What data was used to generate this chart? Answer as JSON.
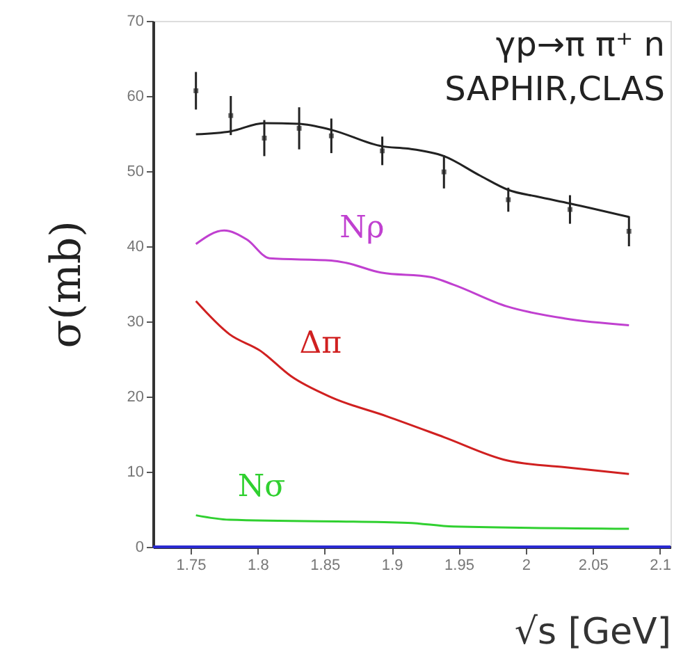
{
  "chart_data": {
    "type": "line",
    "xlabel": "√s [GeV]",
    "ylabel": "σ(mb)",
    "annotations": [
      "γp→π π⁺ n",
      "SAPHIR,CLAS"
    ],
    "xlim": [
      1.722,
      2.108
    ],
    "xticks": [
      1.75,
      {
        "value": 1.8,
        "label": "1.8"
      },
      1.85,
      {
        "value": 1.9,
        "label": "1.9"
      },
      1.95,
      {
        "value": 2,
        "label": "2"
      },
      2.05,
      {
        "value": 2.1,
        "label": "2.1"
      }
    ],
    "ylim": [
      0,
      70
    ],
    "yticks": [
      0,
      10,
      20,
      30,
      40,
      50,
      60,
      70
    ],
    "grid": false,
    "line_style": "solid",
    "ref_lines": [
      {
        "axis": "y",
        "value": 0,
        "color": "#2a2ad0"
      }
    ],
    "series": [
      {
        "color": "#222222",
        "x": [
          1.754,
          1.78,
          1.805,
          1.831,
          1.855,
          1.893,
          1.912,
          1.939,
          1.966,
          1.987,
          2.009,
          2.033,
          2.077
        ],
        "values": [
          54.9,
          55.3,
          56.4,
          56.3,
          55.5,
          53.3,
          53.0,
          52.0,
          49.4,
          47.5,
          46.6,
          45.7,
          43.9
        ]
      },
      {
        "type": "scatter",
        "marker": "square",
        "color": "#222222",
        "x": [
          1.754,
          1.78,
          1.805,
          1.831,
          1.855,
          1.893,
          1.939,
          1.987,
          2.033,
          2.077
        ],
        "values": [
          60.7,
          57.4,
          54.4,
          55.7,
          54.7,
          52.7,
          49.9,
          46.2,
          44.9,
          42.0
        ],
        "errors": [
          2.5,
          2.6,
          2.4,
          2.8,
          2.3,
          1.9,
          2.2,
          1.6,
          1.9,
          2.0
        ]
      },
      {
        "name": "Nρ",
        "color": "#c040d0",
        "x": [
          1.754,
          1.775,
          1.792,
          1.809,
          1.855,
          1.866,
          1.892,
          1.929,
          1.946,
          1.986,
          2.029,
          2.077
        ],
        "values": [
          40.3,
          42.1,
          40.9,
          38.4,
          38.1,
          37.8,
          36.5,
          35.9,
          34.9,
          32.0,
          30.4,
          29.5
        ]
      },
      {
        "name": "Δπ",
        "color": "#d02020",
        "x": [
          1.754,
          1.779,
          1.802,
          1.825,
          1.855,
          1.896,
          1.939,
          1.986,
          2.029,
          2.077
        ],
        "values": [
          32.7,
          28.3,
          26.1,
          22.7,
          19.9,
          17.4,
          14.6,
          11.5,
          10.6,
          9.7
        ]
      },
      {
        "name": "Nσ",
        "color": "#30d030",
        "x": [
          1.754,
          1.779,
          1.912,
          1.946,
          2.077
        ],
        "values": [
          4.2,
          3.6,
          3.2,
          2.7,
          2.4
        ]
      }
    ]
  }
}
